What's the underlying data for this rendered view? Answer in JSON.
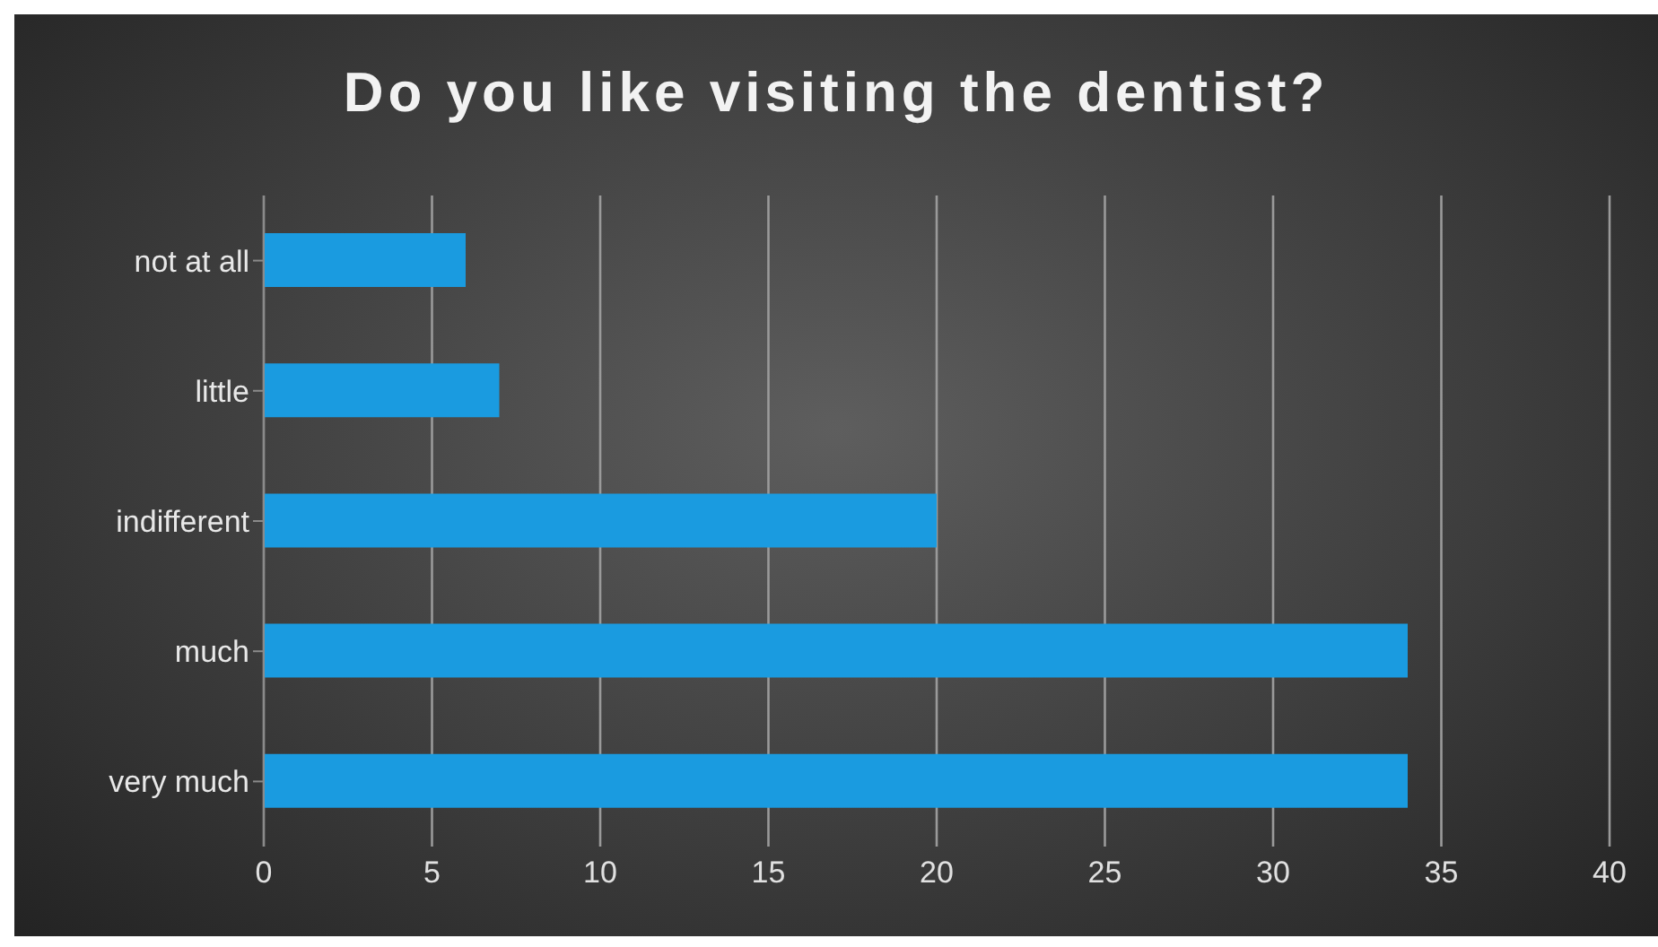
{
  "chart_data": {
    "type": "bar",
    "orientation": "horizontal",
    "title": "Do you like visiting the dentist?",
    "categories": [
      "not at all",
      "little",
      "indifferent",
      "much",
      "very much"
    ],
    "values": [
      6,
      7,
      20,
      34,
      34
    ],
    "color": "#1a9be0",
    "xlim": [
      0,
      40
    ],
    "xticks": [
      0,
      5,
      10,
      15,
      20,
      25,
      30,
      35,
      40
    ],
    "grid": "x"
  }
}
